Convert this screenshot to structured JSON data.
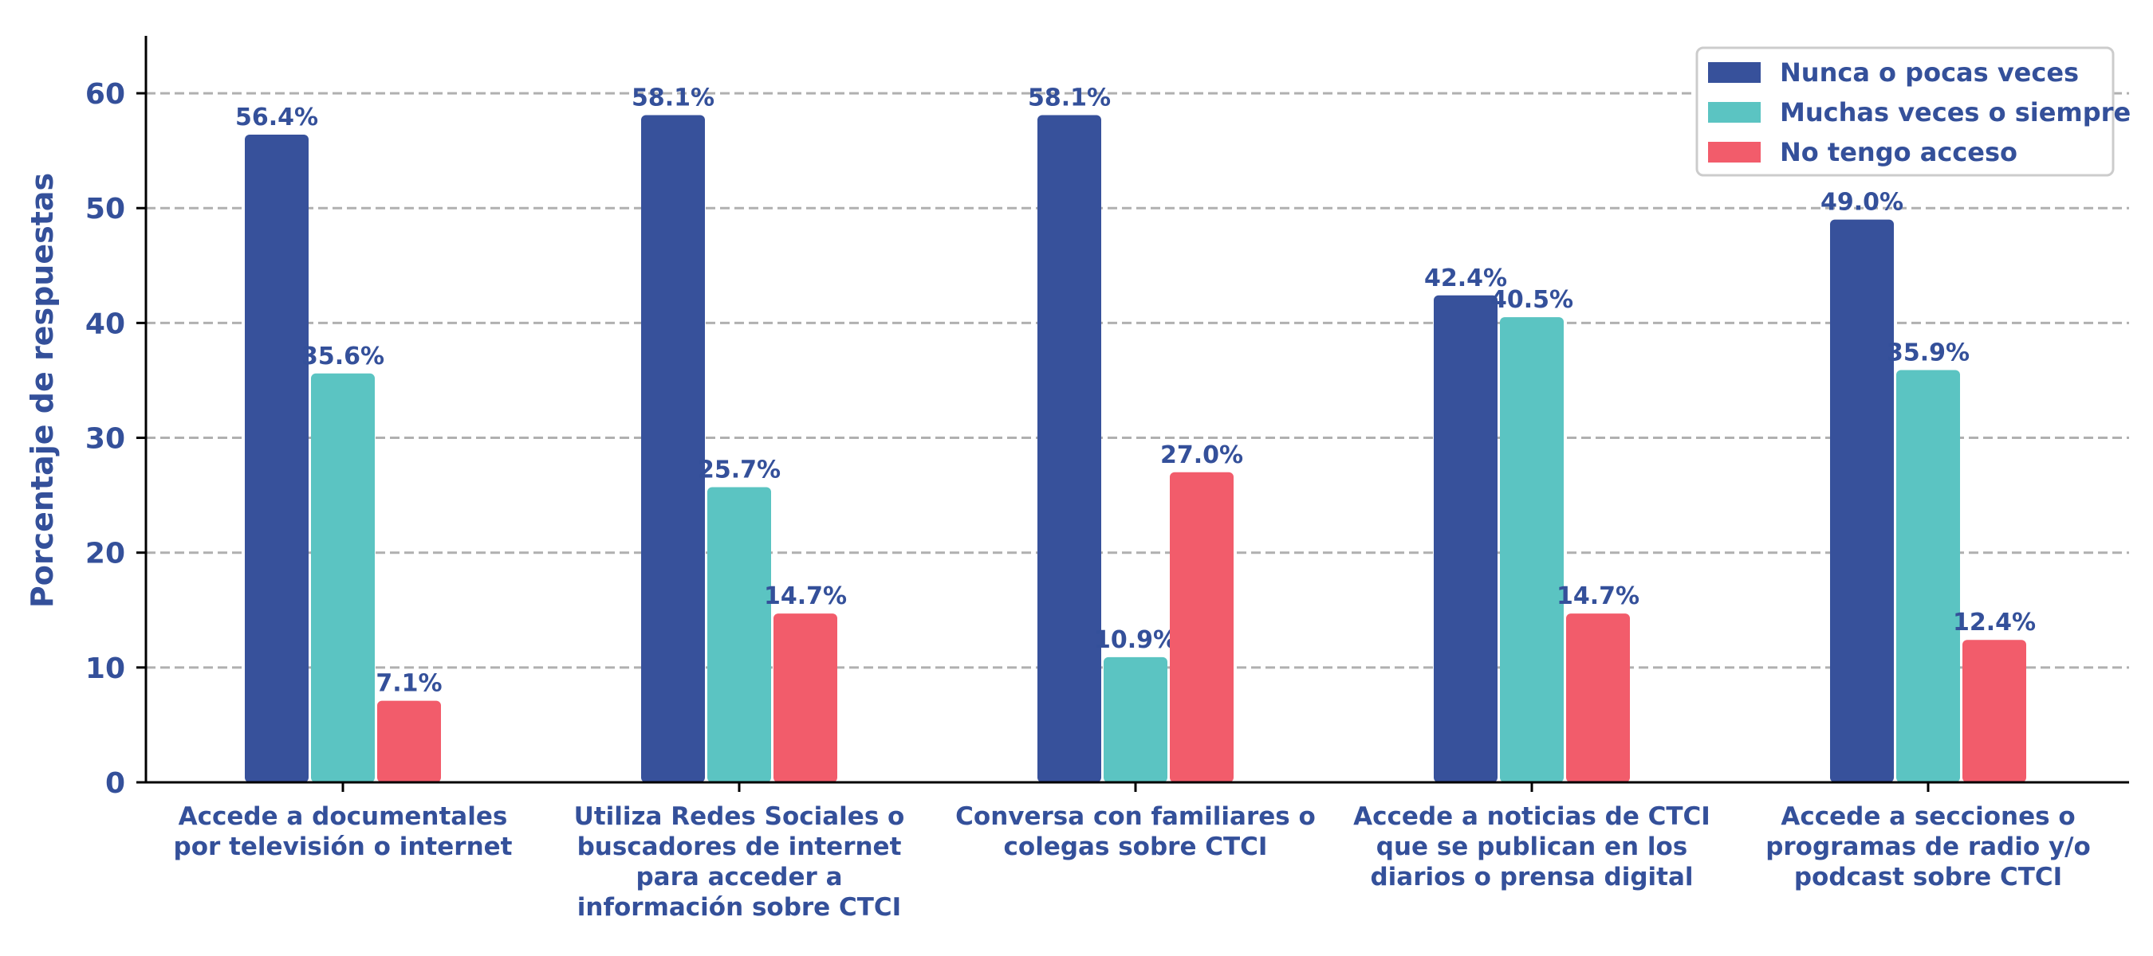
{
  "chart_data": {
    "type": "bar",
    "ylabel": "Porcentaje de respuestas",
    "ylim": [
      0,
      65
    ],
    "yticks": [
      0,
      10,
      20,
      30,
      40,
      50,
      60
    ],
    "grid": true,
    "legend_position": "top-right",
    "categories": [
      [
        "Accede a documentales",
        "por televisión o internet"
      ],
      [
        "Utiliza Redes Sociales o",
        "buscadores de internet",
        "para acceder a",
        "información sobre CTCI"
      ],
      [
        "Conversa con familiares o",
        "colegas sobre CTCI"
      ],
      [
        "Accede a noticias de CTCI",
        "que se publican en los",
        "diarios o prensa digital"
      ],
      [
        "Accede a secciones o",
        "programas de radio y/o",
        "podcast sobre CTCI"
      ]
    ],
    "series": [
      {
        "name": "Nunca o pocas veces",
        "color": "#37519b",
        "values": [
          56.4,
          58.1,
          58.1,
          42.4,
          49.0
        ],
        "labels": [
          "56.4%",
          "58.1%",
          "58.1%",
          "42.4%",
          "49.0%"
        ]
      },
      {
        "name": "Muchas veces o siempre",
        "color": "#5bc4c2",
        "values": [
          35.6,
          25.7,
          10.9,
          40.5,
          35.9
        ],
        "labels": [
          "35.6%",
          "25.7%",
          "10.9%",
          "40.5%",
          "35.9%"
        ]
      },
      {
        "name": "No tengo acceso",
        "color": "#f25c6b",
        "values": [
          7.1,
          14.7,
          27.0,
          14.7,
          12.4
        ],
        "labels": [
          "7.1%",
          "14.7%",
          "27.0%",
          "14.7%",
          "12.4%"
        ]
      }
    ]
  }
}
